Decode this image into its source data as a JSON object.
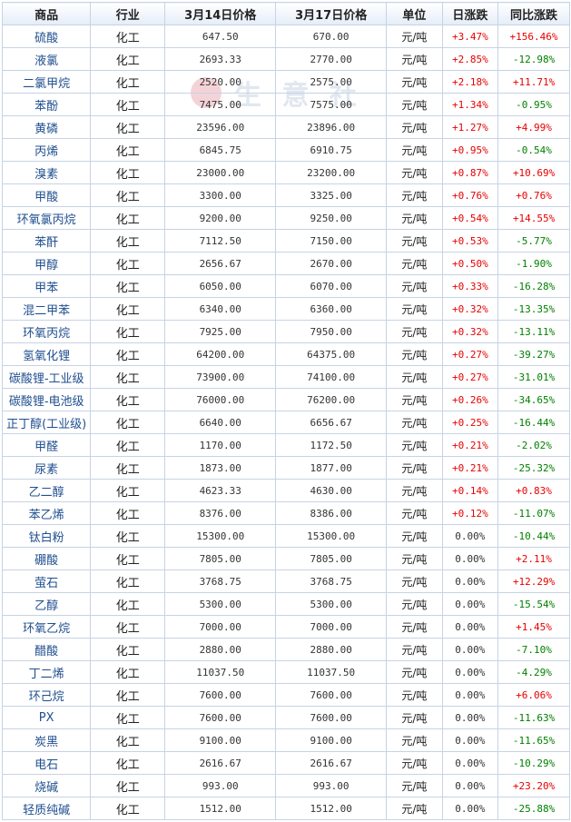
{
  "headers": [
    "商品",
    "行业",
    "3月14日价格",
    "3月17日价格",
    "单位",
    "日涨跌",
    "同比涨跌"
  ],
  "watermark_text": "生 意 社",
  "rows": [
    {
      "name": "硫酸",
      "industry": "化工",
      "p1": "647.50",
      "p2": "670.00",
      "unit": "元/吨",
      "day": "+3.47%",
      "yoy": "+156.46%"
    },
    {
      "name": "液氯",
      "industry": "化工",
      "p1": "2693.33",
      "p2": "2770.00",
      "unit": "元/吨",
      "day": "+2.85%",
      "yoy": "-12.98%"
    },
    {
      "name": "二氯甲烷",
      "industry": "化工",
      "p1": "2520.00",
      "p2": "2575.00",
      "unit": "元/吨",
      "day": "+2.18%",
      "yoy": "+11.71%"
    },
    {
      "name": "苯酚",
      "industry": "化工",
      "p1": "7475.00",
      "p2": "7575.00",
      "unit": "元/吨",
      "day": "+1.34%",
      "yoy": "-0.95%"
    },
    {
      "name": "黄磷",
      "industry": "化工",
      "p1": "23596.00",
      "p2": "23896.00",
      "unit": "元/吨",
      "day": "+1.27%",
      "yoy": "+4.99%"
    },
    {
      "name": "丙烯",
      "industry": "化工",
      "p1": "6845.75",
      "p2": "6910.75",
      "unit": "元/吨",
      "day": "+0.95%",
      "yoy": "-0.54%"
    },
    {
      "name": "溴素",
      "industry": "化工",
      "p1": "23000.00",
      "p2": "23200.00",
      "unit": "元/吨",
      "day": "+0.87%",
      "yoy": "+10.69%"
    },
    {
      "name": "甲酸",
      "industry": "化工",
      "p1": "3300.00",
      "p2": "3325.00",
      "unit": "元/吨",
      "day": "+0.76%",
      "yoy": "+0.76%"
    },
    {
      "name": "环氧氯丙烷",
      "industry": "化工",
      "p1": "9200.00",
      "p2": "9250.00",
      "unit": "元/吨",
      "day": "+0.54%",
      "yoy": "+14.55%"
    },
    {
      "name": "苯酐",
      "industry": "化工",
      "p1": "7112.50",
      "p2": "7150.00",
      "unit": "元/吨",
      "day": "+0.53%",
      "yoy": "-5.77%"
    },
    {
      "name": "甲醇",
      "industry": "化工",
      "p1": "2656.67",
      "p2": "2670.00",
      "unit": "元/吨",
      "day": "+0.50%",
      "yoy": "-1.90%"
    },
    {
      "name": "甲苯",
      "industry": "化工",
      "p1": "6050.00",
      "p2": "6070.00",
      "unit": "元/吨",
      "day": "+0.33%",
      "yoy": "-16.28%"
    },
    {
      "name": "混二甲苯",
      "industry": "化工",
      "p1": "6340.00",
      "p2": "6360.00",
      "unit": "元/吨",
      "day": "+0.32%",
      "yoy": "-13.35%"
    },
    {
      "name": "环氧丙烷",
      "industry": "化工",
      "p1": "7925.00",
      "p2": "7950.00",
      "unit": "元/吨",
      "day": "+0.32%",
      "yoy": "-13.11%"
    },
    {
      "name": "氢氧化锂",
      "industry": "化工",
      "p1": "64200.00",
      "p2": "64375.00",
      "unit": "元/吨",
      "day": "+0.27%",
      "yoy": "-39.27%"
    },
    {
      "name": "碳酸锂-工业级",
      "industry": "化工",
      "p1": "73900.00",
      "p2": "74100.00",
      "unit": "元/吨",
      "day": "+0.27%",
      "yoy": "-31.01%"
    },
    {
      "name": "碳酸锂-电池级",
      "industry": "化工",
      "p1": "76000.00",
      "p2": "76200.00",
      "unit": "元/吨",
      "day": "+0.26%",
      "yoy": "-34.65%"
    },
    {
      "name": "正丁醇(工业级)",
      "industry": "化工",
      "p1": "6640.00",
      "p2": "6656.67",
      "unit": "元/吨",
      "day": "+0.25%",
      "yoy": "-16.44%"
    },
    {
      "name": "甲醛",
      "industry": "化工",
      "p1": "1170.00",
      "p2": "1172.50",
      "unit": "元/吨",
      "day": "+0.21%",
      "yoy": "-2.02%"
    },
    {
      "name": "尿素",
      "industry": "化工",
      "p1": "1873.00",
      "p2": "1877.00",
      "unit": "元/吨",
      "day": "+0.21%",
      "yoy": "-25.32%"
    },
    {
      "name": "乙二醇",
      "industry": "化工",
      "p1": "4623.33",
      "p2": "4630.00",
      "unit": "元/吨",
      "day": "+0.14%",
      "yoy": "+0.83%"
    },
    {
      "name": "苯乙烯",
      "industry": "化工",
      "p1": "8376.00",
      "p2": "8386.00",
      "unit": "元/吨",
      "day": "+0.12%",
      "yoy": "-11.07%"
    },
    {
      "name": "钛白粉",
      "industry": "化工",
      "p1": "15300.00",
      "p2": "15300.00",
      "unit": "元/吨",
      "day": "0.00%",
      "yoy": "-10.44%"
    },
    {
      "name": "硼酸",
      "industry": "化工",
      "p1": "7805.00",
      "p2": "7805.00",
      "unit": "元/吨",
      "day": "0.00%",
      "yoy": "+2.11%"
    },
    {
      "name": "萤石",
      "industry": "化工",
      "p1": "3768.75",
      "p2": "3768.75",
      "unit": "元/吨",
      "day": "0.00%",
      "yoy": "+12.29%"
    },
    {
      "name": "乙醇",
      "industry": "化工",
      "p1": "5300.00",
      "p2": "5300.00",
      "unit": "元/吨",
      "day": "0.00%",
      "yoy": "-15.54%"
    },
    {
      "name": "环氧乙烷",
      "industry": "化工",
      "p1": "7000.00",
      "p2": "7000.00",
      "unit": "元/吨",
      "day": "0.00%",
      "yoy": "+1.45%"
    },
    {
      "name": "醋酸",
      "industry": "化工",
      "p1": "2880.00",
      "p2": "2880.00",
      "unit": "元/吨",
      "day": "0.00%",
      "yoy": "-7.10%"
    },
    {
      "name": "丁二烯",
      "industry": "化工",
      "p1": "11037.50",
      "p2": "11037.50",
      "unit": "元/吨",
      "day": "0.00%",
      "yoy": "-4.29%"
    },
    {
      "name": "环己烷",
      "industry": "化工",
      "p1": "7600.00",
      "p2": "7600.00",
      "unit": "元/吨",
      "day": "0.00%",
      "yoy": "+6.06%"
    },
    {
      "name": "PX",
      "industry": "化工",
      "p1": "7600.00",
      "p2": "7600.00",
      "unit": "元/吨",
      "day": "0.00%",
      "yoy": "-11.63%"
    },
    {
      "name": "炭黑",
      "industry": "化工",
      "p1": "9100.00",
      "p2": "9100.00",
      "unit": "元/吨",
      "day": "0.00%",
      "yoy": "-11.65%"
    },
    {
      "name": "电石",
      "industry": "化工",
      "p1": "2616.67",
      "p2": "2616.67",
      "unit": "元/吨",
      "day": "0.00%",
      "yoy": "-10.29%"
    },
    {
      "name": "烧碱",
      "industry": "化工",
      "p1": "993.00",
      "p2": "993.00",
      "unit": "元/吨",
      "day": "0.00%",
      "yoy": "+23.20%"
    },
    {
      "name": "轻质纯碱",
      "industry": "化工",
      "p1": "1512.00",
      "p2": "1512.00",
      "unit": "元/吨",
      "day": "0.00%",
      "yoy": "-25.88%"
    }
  ],
  "colors": {
    "up": "#e60000",
    "down": "#008000",
    "link": "#1f4f8f",
    "border": "#c7d3e4"
  }
}
